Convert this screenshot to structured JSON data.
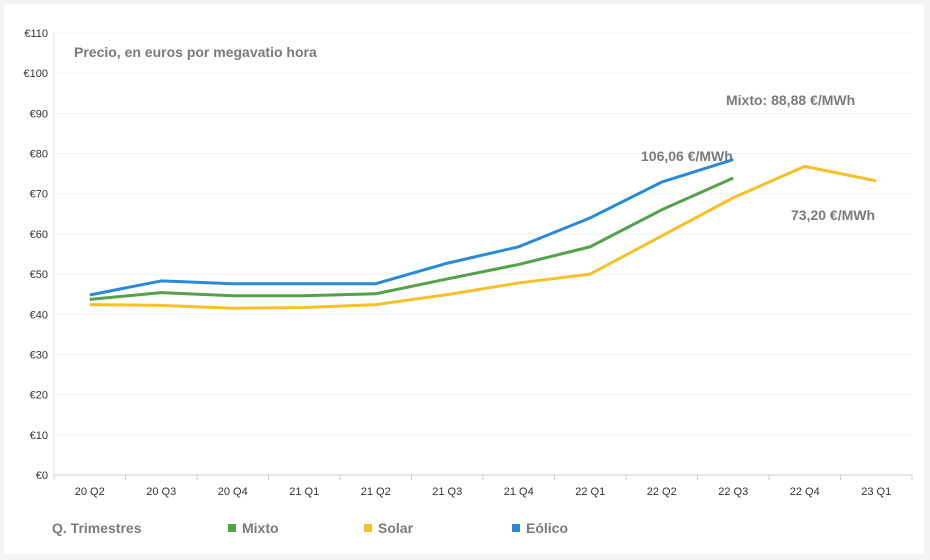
{
  "chart_data": {
    "type": "line",
    "title": "Precio, en euros por megavatio hora",
    "xlabel": "Q. Trimestres",
    "ylabel": "",
    "ylim": [
      0,
      110
    ],
    "yticks": [
      "€0",
      "€10",
      "€20",
      "€30",
      "€40",
      "€50",
      "€60",
      "€70",
      "€80",
      "€90",
      "€100",
      "€110"
    ],
    "grid": true,
    "legend_position": "bottom",
    "categories": [
      "20 Q2",
      "20 Q3",
      "20 Q4",
      "21 Q1",
      "21 Q2",
      "21 Q3",
      "21 Q4",
      "22 Q1",
      "22 Q2",
      "22 Q3",
      "22 Q4",
      "23 Q1"
    ],
    "series": [
      {
        "name": "Mixto",
        "color": "#55a04a",
        "values": [
          43.7,
          45.4,
          44.6,
          44.6,
          45.1,
          48.8,
          52.4,
          56.8,
          66.0,
          73.9,
          null,
          null
        ]
      },
      {
        "name": "Solar",
        "color": "#f5c02a",
        "values": [
          42.4,
          42.2,
          41.5,
          41.7,
          42.4,
          44.9,
          47.8,
          50.0,
          59.5,
          69.0,
          76.8,
          73.2
        ]
      },
      {
        "name": "Eólico",
        "color": "#2b8ad8",
        "values": [
          44.8,
          48.3,
          47.6,
          47.6,
          47.6,
          52.7,
          56.8,
          64.0,
          72.9,
          78.5,
          null,
          null
        ]
      }
    ],
    "annotations": [
      "Mixto: 88,88 €/MWh",
      "106,06 €/MWh",
      "73,20 €/MWh"
    ]
  }
}
